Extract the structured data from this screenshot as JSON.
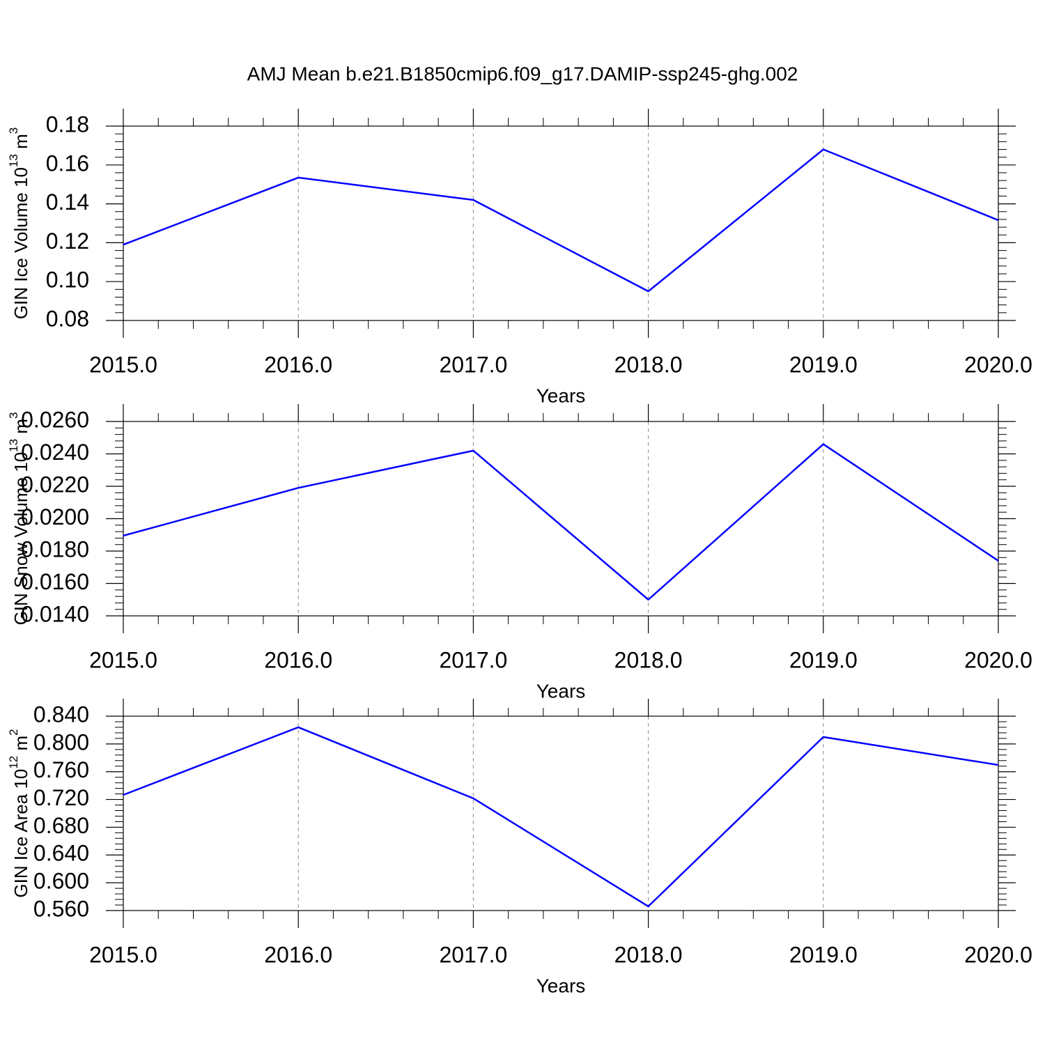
{
  "chart_data": [
    {
      "type": "line",
      "title": "AMJ Mean b.e21.B1850cmip6.f09_g17.DAMIP-ssp245-ghg.002",
      "xlabel": "Years",
      "ylabel": [
        "GIN Ice Volume 10",
        "13",
        " m",
        "3"
      ],
      "x": [
        2015,
        2016,
        2017,
        2018,
        2019,
        2020
      ],
      "series": [
        {
          "color": "#0000ff",
          "values": [
            0.119,
            0.1535,
            0.142,
            0.095,
            0.168,
            0.1316
          ]
        }
      ],
      "xlim": [
        2015,
        2020
      ],
      "xticks": [
        {
          "value": 2015,
          "label": "2015.0"
        },
        {
          "value": 2016,
          "label": "2016.0"
        },
        {
          "value": 2017,
          "label": "2017.0"
        },
        {
          "value": 2018,
          "label": "2018.0"
        },
        {
          "value": 2019,
          "label": "2019.0"
        },
        {
          "value": 2020,
          "label": "2020.0"
        }
      ],
      "ylim": [
        0.08,
        0.18
      ],
      "yticks": [
        0.08,
        {
          "value": 0.1,
          "label": "0.10"
        },
        0.12,
        0.14,
        0.16,
        0.18
      ],
      "grid": true
    },
    {
      "type": "line",
      "xlabel": "Years",
      "ylabel": [
        "GIN Snow Volume 10",
        "13",
        " m",
        "3"
      ],
      "x": [
        2015,
        2016,
        2017,
        2018,
        2019,
        2020
      ],
      "series": [
        {
          "color": "#0000ff",
          "values": [
            0.01895,
            0.0219,
            0.0242,
            0.015,
            0.0246,
            0.0174
          ]
        }
      ],
      "xlim": [
        2015,
        2020
      ],
      "xticks": [
        {
          "value": 2015,
          "label": "2015.0"
        },
        {
          "value": 2016,
          "label": "2016.0"
        },
        {
          "value": 2017,
          "label": "2017.0"
        },
        {
          "value": 2018,
          "label": "2018.0"
        },
        {
          "value": 2019,
          "label": "2019.0"
        },
        {
          "value": 2020,
          "label": "2020.0"
        }
      ],
      "ylim": [
        0.014,
        0.026
      ],
      "yticks": [
        {
          "value": 0.014,
          "label": "0.0140"
        },
        {
          "value": 0.016,
          "label": "0.0160"
        },
        {
          "value": 0.018,
          "label": "0.0180"
        },
        {
          "value": 0.02,
          "label": "0.0200"
        },
        {
          "value": 0.022,
          "label": "0.0220"
        },
        {
          "value": 0.024,
          "label": "0.0240"
        },
        {
          "value": 0.026,
          "label": "0.0260"
        }
      ],
      "grid": true
    },
    {
      "type": "line",
      "xlabel": "Years",
      "ylabel": [
        "GIN Ice Area 10",
        "12",
        " m",
        "2"
      ],
      "x": [
        2015,
        2016,
        2017,
        2018,
        2019,
        2020
      ],
      "series": [
        {
          "color": "#0000ff",
          "values": [
            0.7266,
            0.824,
            0.7216,
            0.566,
            0.81,
            0.7697
          ]
        }
      ],
      "xlim": [
        2015,
        2020
      ],
      "xticks": [
        {
          "value": 2015,
          "label": "2015.0"
        },
        {
          "value": 2016,
          "label": "2016.0"
        },
        {
          "value": 2017,
          "label": "2017.0"
        },
        {
          "value": 2018,
          "label": "2018.0"
        },
        {
          "value": 2019,
          "label": "2019.0"
        },
        {
          "value": 2020,
          "label": "2020.0"
        }
      ],
      "ylim": [
        0.56,
        0.84
      ],
      "yticks": [
        {
          "value": 0.56,
          "label": "0.560"
        },
        {
          "value": 0.6,
          "label": "0.600"
        },
        {
          "value": 0.64,
          "label": "0.640"
        },
        {
          "value": 0.68,
          "label": "0.680"
        },
        {
          "value": 0.72,
          "label": "0.720"
        },
        {
          "value": 0.76,
          "label": "0.760"
        },
        {
          "value": 0.8,
          "label": "0.800"
        },
        {
          "value": 0.84,
          "label": "0.840"
        }
      ],
      "grid": true
    }
  ]
}
